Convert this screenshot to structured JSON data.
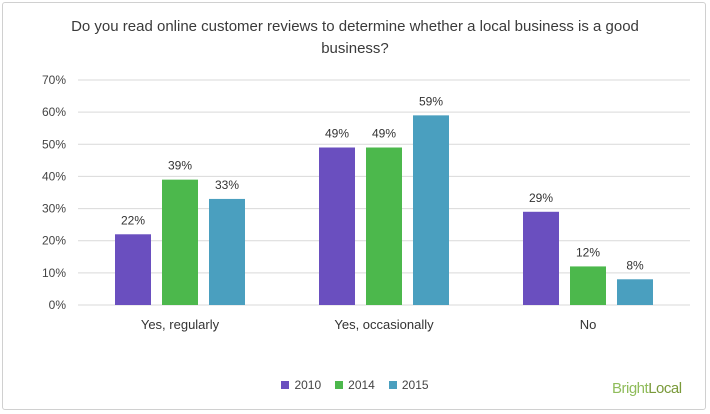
{
  "chart_data": {
    "type": "bar",
    "title": "Do you read online customer reviews to determine whether a local business is a good business?",
    "categories": [
      "Yes, regularly",
      "Yes, occasionally",
      "No"
    ],
    "series": [
      {
        "name": "2010",
        "values": [
          22,
          49,
          29
        ],
        "color": "#6a4fbf"
      },
      {
        "name": "2014",
        "values": [
          39,
          49,
          12
        ],
        "color": "#4cb84c"
      },
      {
        "name": "2015",
        "values": [
          33,
          59,
          8
        ],
        "color": "#4a9fbf"
      }
    ],
    "ylim": [
      0,
      70
    ],
    "yticks": [
      "0%",
      "10%",
      "20%",
      "30%",
      "40%",
      "50%",
      "60%",
      "70%"
    ],
    "value_suffix": "%",
    "grid": true,
    "legend_position": "bottom"
  },
  "branding": {
    "logo_part1": "Bright",
    "logo_part2": "Local"
  }
}
